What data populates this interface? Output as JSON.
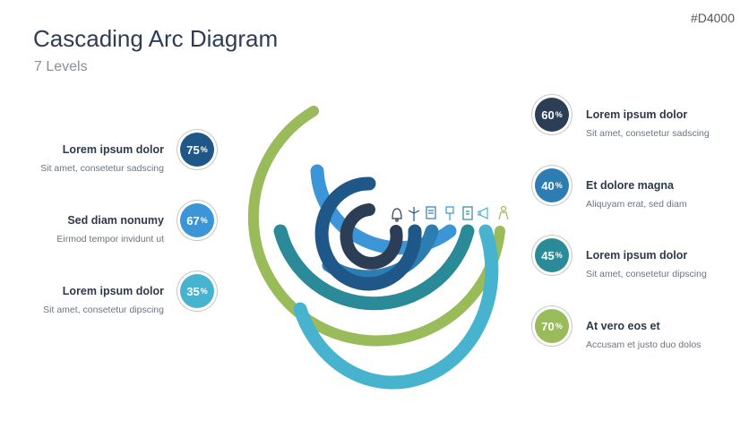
{
  "header": {
    "title": "Cascading Arc Diagram",
    "subtitle": "7 Levels",
    "code": "#D4000"
  },
  "colors": {
    "navy": "#2c3e55",
    "darkblue": "#1f5788",
    "blue": "#3b95d7",
    "steelblue": "#2d7db3",
    "teal": "#2b8a98",
    "lightteal": "#47b3cf",
    "green": "#9abb59"
  },
  "levels": [
    {
      "percent": "75",
      "sign": "%",
      "label": "Lorem ipsum dolor",
      "desc": "Sit amet, consetetur sadscing",
      "color": "#1f5788"
    },
    {
      "percent": "67",
      "sign": "%",
      "label": "Sed diam nonumy",
      "desc": "Eirmod tempor invidunt ut",
      "color": "#3b95d7"
    },
    {
      "percent": "35",
      "sign": "%",
      "label": "Lorem ipsum dolor",
      "desc": "Sit amet, consetetur dipscing",
      "color": "#47b3cf"
    },
    {
      "percent": "60",
      "sign": "%",
      "label": "Lorem ipsum dolor",
      "desc": "Sit amet, consetetur sadscing",
      "color": "#2c3e55"
    },
    {
      "percent": "40",
      "sign": "%",
      "label": "Et dolore magna",
      "desc": "Aliquyam erat, sed diam",
      "color": "#2d7db3"
    },
    {
      "percent": "45",
      "sign": "%",
      "label": "Lorem ipsum dolor",
      "desc": "Sit amet, consetetur dipscing",
      "color": "#2b8a98"
    },
    {
      "percent": "70",
      "sign": "%",
      "label": "At vero eos et",
      "desc": "Accusam et justo duo dolos",
      "color": "#9abb59"
    }
  ],
  "icons": [
    "bell-icon",
    "wind-turbine-icon",
    "document-icon",
    "pushpin-icon",
    "clipboard-icon",
    "megaphone-icon",
    "person-icon"
  ]
}
